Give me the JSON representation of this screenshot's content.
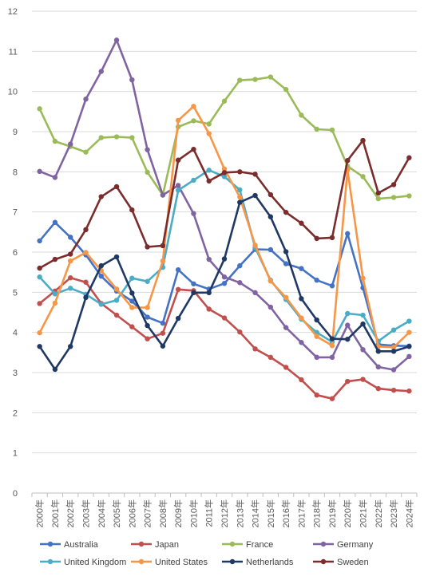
{
  "chart_data": {
    "type": "line",
    "title": "",
    "xlabel": "",
    "ylabel": "",
    "ylim": [
      0,
      12
    ],
    "y_ticks": [
      0,
      1,
      2,
      3,
      4,
      5,
      6,
      7,
      8,
      9,
      10,
      11,
      12
    ],
    "grid": true,
    "legend_position": "bottom",
    "x": [
      "2000年",
      "2001年",
      "2002年",
      "2003年",
      "2004年",
      "2005年",
      "2006年",
      "2007年",
      "2008年",
      "2009年",
      "2010年",
      "2011年",
      "2012年",
      "2013年",
      "2014年",
      "2015年",
      "2016年",
      "2017年",
      "2018年",
      "2019年",
      "2020年",
      "2021年",
      "2022年",
      "2023年",
      "2024年"
    ],
    "series": [
      {
        "name": "Australia",
        "color": "#4472C4",
        "values": [
          6.28,
          6.74,
          6.37,
          5.93,
          5.4,
          5.03,
          4.78,
          4.38,
          4.23,
          5.56,
          5.21,
          5.08,
          5.22,
          5.66,
          6.07,
          6.06,
          5.71,
          5.59,
          5.3,
          5.16,
          6.46,
          5.11,
          3.7,
          3.67,
          3.66
        ]
      },
      {
        "name": "Japan",
        "color": "#C0504D",
        "values": [
          4.72,
          5.03,
          5.36,
          5.25,
          4.72,
          4.43,
          4.14,
          3.84,
          3.98,
          5.07,
          5.04,
          4.58,
          4.36,
          4.01,
          3.59,
          3.38,
          3.13,
          2.82,
          2.44,
          2.35,
          2.78,
          2.83,
          2.6,
          2.56,
          2.54
        ]
      },
      {
        "name": "France",
        "color": "#9BBB59",
        "values": [
          9.57,
          8.76,
          8.63,
          8.49,
          8.85,
          8.87,
          8.85,
          7.99,
          7.42,
          9.12,
          9.27,
          9.19,
          9.76,
          10.28,
          10.3,
          10.36,
          10.05,
          9.41,
          9.06,
          9.04,
          8.14,
          7.88,
          7.33,
          7.36,
          7.4
        ]
      },
      {
        "name": "Germany",
        "color": "#8064A2",
        "values": [
          8.01,
          7.86,
          8.69,
          9.81,
          10.5,
          11.28,
          10.29,
          8.55,
          7.42,
          7.66,
          6.96,
          5.82,
          5.38,
          5.24,
          4.99,
          4.63,
          4.12,
          3.75,
          3.38,
          3.38,
          4.18,
          3.57,
          3.14,
          3.07,
          3.4
        ]
      },
      {
        "name": "United Kingdom",
        "color": "#4BACC6",
        "values": [
          5.38,
          4.96,
          5.1,
          4.95,
          4.7,
          4.8,
          5.35,
          5.27,
          5.62,
          7.54,
          7.79,
          8.04,
          7.88,
          7.55,
          6.11,
          5.3,
          4.82,
          4.33,
          4.0,
          3.76,
          4.47,
          4.43,
          3.78,
          4.06,
          4.28
        ]
      },
      {
        "name": "United States",
        "color": "#F79646",
        "values": [
          3.99,
          4.73,
          5.78,
          5.99,
          5.54,
          5.08,
          4.62,
          4.62,
          5.78,
          9.28,
          9.63,
          8.95,
          8.07,
          7.37,
          6.17,
          5.28,
          4.87,
          4.36,
          3.9,
          3.67,
          8.05,
          5.35,
          3.65,
          3.63,
          4.0
        ]
      },
      {
        "name": "Netherlands",
        "color": "#1F3864",
        "values": [
          3.65,
          3.08,
          3.65,
          4.87,
          5.66,
          5.88,
          4.98,
          4.17,
          3.66,
          4.35,
          4.99,
          4.99,
          5.83,
          7.24,
          7.41,
          6.88,
          6.01,
          4.84,
          4.31,
          3.84,
          3.83,
          4.21,
          3.53,
          3.53,
          3.65
        ]
      },
      {
        "name": "Sweden",
        "color": "#7B2C2C",
        "values": [
          5.6,
          5.82,
          5.95,
          6.56,
          7.38,
          7.63,
          7.05,
          6.13,
          6.16,
          8.29,
          8.56,
          7.77,
          7.98,
          8.0,
          7.94,
          7.43,
          6.99,
          6.72,
          6.34,
          6.36,
          8.28,
          8.78,
          7.47,
          7.68,
          8.35
        ]
      }
    ]
  }
}
